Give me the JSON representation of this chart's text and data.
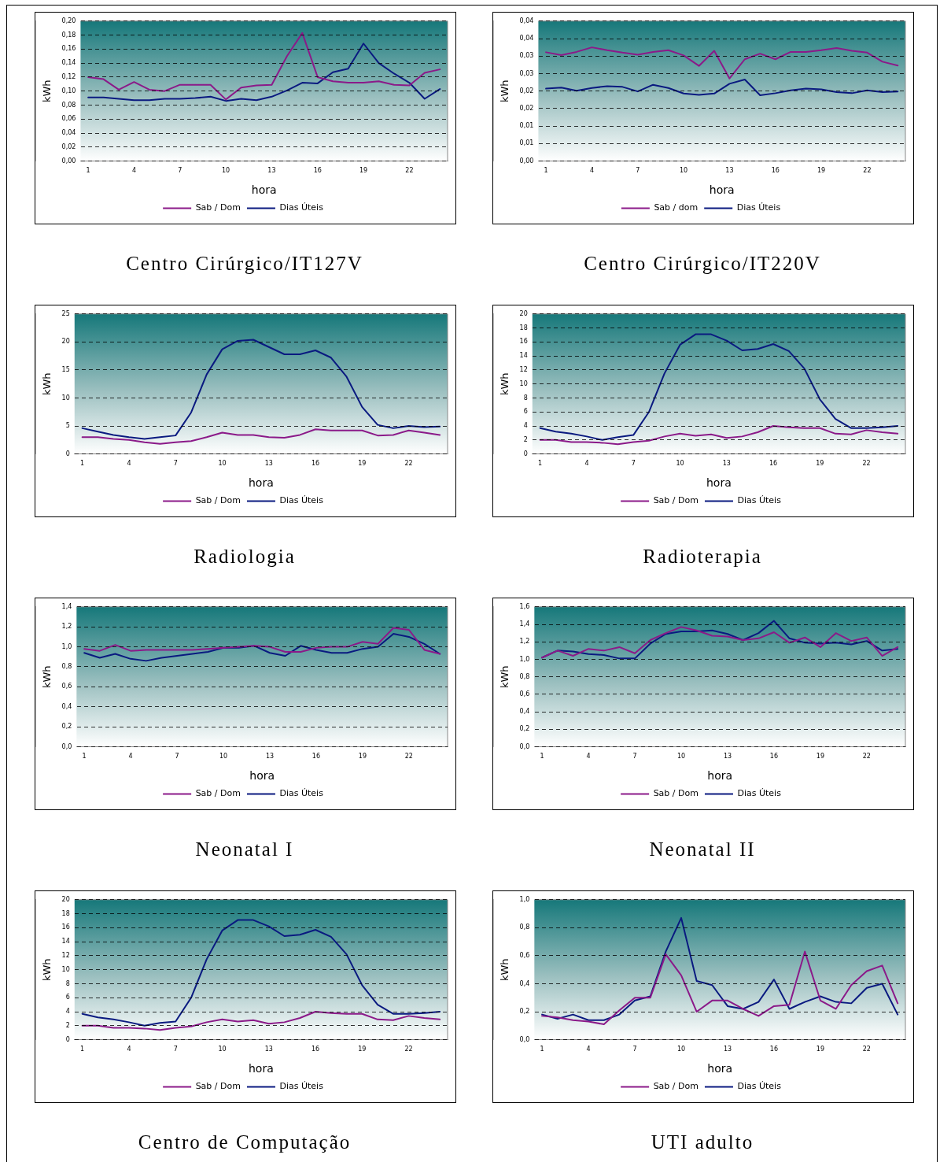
{
  "chart_data": [
    {
      "type": "line",
      "title": "Centro Cirúrgico/IT127V",
      "xlabel": "hora",
      "ylabel": "kWh",
      "categories": [
        "1",
        null,
        null,
        "4",
        null,
        null,
        "7",
        null,
        null,
        "10",
        null,
        null,
        "13",
        null,
        null,
        "16",
        null,
        null,
        "19",
        null,
        null,
        "22",
        null,
        null
      ],
      "ylim": [
        0,
        0.2
      ],
      "yticks": [
        {
          "value": 0,
          "label": "0,00"
        },
        {
          "value": 0.02,
          "label": "0,02"
        },
        {
          "value": 0.04,
          "label": "0,04"
        },
        {
          "value": 0.06,
          "label": "0,06"
        },
        {
          "value": 0.08,
          "label": "0,08"
        },
        {
          "value": 0.1,
          "label": "0,10"
        },
        {
          "value": 0.12,
          "label": "0,12"
        },
        {
          "value": 0.14,
          "label": "0,14"
        },
        {
          "value": 0.16,
          "label": "0,16"
        },
        {
          "value": 0.18,
          "label": "0,18"
        },
        {
          "value": 0.2,
          "label": "0,20"
        }
      ],
      "grid": "y",
      "legend": "bottom",
      "series": [
        {
          "name": "Sab / Dom",
          "color": "#8b1a89",
          "values": [
            0.12,
            0.117,
            0.102,
            0.113,
            0.102,
            0.1,
            0.109,
            0.109,
            0.109,
            0.088,
            0.105,
            0.108,
            0.109,
            0.15,
            0.183,
            0.12,
            0.114,
            0.112,
            0.112,
            0.114,
            0.109,
            0.108,
            0.126,
            0.131
          ]
        },
        {
          "name": "Dias Úteis",
          "color": "#0a1a80",
          "values": [
            0.091,
            0.091,
            0.089,
            0.087,
            0.087,
            0.089,
            0.089,
            0.09,
            0.092,
            0.086,
            0.089,
            0.087,
            0.092,
            0.101,
            0.112,
            0.111,
            0.127,
            0.132,
            0.168,
            0.14,
            0.125,
            0.112,
            0.089,
            0.103
          ]
        }
      ]
    },
    {
      "type": "line",
      "title": "Centro Cirúrgico/IT220V",
      "xlabel": "hora",
      "ylabel": "kWh",
      "categories": [
        "1",
        null,
        null,
        "4",
        null,
        null,
        "7",
        null,
        null,
        "10",
        null,
        null,
        "13",
        null,
        null,
        "16",
        null,
        null,
        "19",
        null,
        null,
        "22",
        null,
        null
      ],
      "ylim": [
        0,
        0.04
      ],
      "yticks": [
        {
          "value": 0,
          "label": "0,00"
        },
        {
          "value": 0.005,
          "label": "0,01"
        },
        {
          "value": 0.01,
          "label": "0,01"
        },
        {
          "value": 0.015,
          "label": "0,02"
        },
        {
          "value": 0.02,
          "label": "0,02"
        },
        {
          "value": 0.025,
          "label": "0,03"
        },
        {
          "value": 0.03,
          "label": "0,03"
        },
        {
          "value": 0.035,
          "label": "0,04"
        },
        {
          "value": 0.04,
          "label": "0,04"
        }
      ],
      "grid": "y",
      "legend": "bottom",
      "series": [
        {
          "name": "Sab / dom",
          "color": "#8b1a89",
          "values": [
            0.0311,
            0.0303,
            0.0312,
            0.0325,
            0.0317,
            0.031,
            0.0304,
            0.0312,
            0.0317,
            0.0302,
            0.0272,
            0.0315,
            0.0236,
            0.0291,
            0.0307,
            0.0291,
            0.0312,
            0.0312,
            0.0317,
            0.0323,
            0.0315,
            0.031,
            0.0284,
            0.0273
          ]
        },
        {
          "name": "Dias Úteis",
          "color": "#0a1a80",
          "values": [
            0.0207,
            0.021,
            0.0201,
            0.0209,
            0.0214,
            0.0212,
            0.0199,
            0.0218,
            0.0209,
            0.0193,
            0.0189,
            0.0193,
            0.0221,
            0.0233,
            0.0188,
            0.0194,
            0.0202,
            0.0207,
            0.0205,
            0.0197,
            0.0194,
            0.0202,
            0.0197,
            0.0199
          ]
        }
      ]
    },
    {
      "type": "line",
      "title": "Radiologia",
      "xlabel": "hora",
      "ylabel": "kWh",
      "categories": [
        "1",
        null,
        null,
        "4",
        null,
        null,
        "7",
        null,
        null,
        "10",
        null,
        null,
        "13",
        null,
        null,
        "16",
        null,
        null,
        "19",
        null,
        null,
        "22",
        null,
        null
      ],
      "ylim": [
        0,
        25
      ],
      "yticks": [
        0,
        5,
        10,
        15,
        20,
        25
      ],
      "grid": "y",
      "legend": "bottom",
      "series": [
        {
          "name": "Sab / Dom",
          "color": "#8b1a89",
          "values": [
            3.0,
            3.0,
            2.7,
            2.5,
            2.1,
            1.8,
            2.1,
            2.3,
            3.0,
            3.8,
            3.4,
            3.4,
            3.0,
            2.9,
            3.4,
            4.4,
            4.2,
            4.2,
            4.2,
            3.3,
            3.4,
            4.2,
            3.8,
            3.4
          ]
        },
        {
          "name": "Dias Úteis",
          "color": "#0a1a80",
          "values": [
            4.6,
            4.0,
            3.4,
            3.0,
            2.7,
            3.0,
            3.3,
            7.4,
            14.2,
            18.7,
            20.2,
            20.4,
            19.1,
            17.8,
            17.8,
            18.5,
            17.2,
            13.8,
            8.4,
            5.2,
            4.6,
            5.0,
            4.8,
            4.9
          ]
        }
      ]
    },
    {
      "type": "line",
      "title": "Radioterapia",
      "xlabel": "hora",
      "ylabel": "kWh",
      "categories": [
        "1",
        null,
        null,
        "4",
        null,
        null,
        "7",
        null,
        null,
        "10",
        null,
        null,
        "13",
        null,
        null,
        "16",
        null,
        null,
        "19",
        null,
        null,
        "22",
        null,
        null
      ],
      "ylim": [
        0,
        20
      ],
      "yticks": [
        0,
        2,
        4,
        6,
        8,
        10,
        12,
        14,
        16,
        18,
        20
      ],
      "grid": "y",
      "legend": "bottom",
      "series": [
        {
          "name": "Sab / Dom",
          "color": "#8b1a89",
          "values": [
            2.0,
            2.0,
            1.7,
            1.7,
            1.6,
            1.4,
            1.7,
            1.9,
            2.5,
            2.9,
            2.6,
            2.8,
            2.3,
            2.5,
            3.1,
            4.0,
            3.8,
            3.7,
            3.7,
            2.9,
            2.8,
            3.4,
            3.1,
            2.9
          ]
        },
        {
          "name": "Dias Úteis",
          "color": "#0a1a80",
          "values": [
            3.7,
            3.2,
            2.9,
            2.5,
            2.0,
            2.4,
            2.7,
            6.0,
            11.5,
            15.6,
            17.1,
            17.1,
            16.2,
            14.8,
            15.0,
            15.7,
            14.7,
            12.2,
            7.8,
            5.0,
            3.7,
            3.7,
            3.8,
            4.0
          ]
        }
      ]
    },
    {
      "type": "line",
      "title": "Neonatal I",
      "xlabel": "hora",
      "ylabel": "kWh",
      "categories": [
        "1",
        null,
        null,
        "4",
        null,
        null,
        "7",
        null,
        null,
        "10",
        null,
        null,
        "13",
        null,
        null,
        "16",
        null,
        null,
        "19",
        null,
        null,
        "22",
        null,
        null
      ],
      "ylim": [
        0,
        1.4
      ],
      "yticks": [
        {
          "value": 0,
          "label": "0,0"
        },
        {
          "value": 0.2,
          "label": "0,2"
        },
        {
          "value": 0.4,
          "label": "0,4"
        },
        {
          "value": 0.6,
          "label": "0,6"
        },
        {
          "value": 0.8,
          "label": "0,8"
        },
        {
          "value": 1.0,
          "label": "1,0"
        },
        {
          "value": 1.2,
          "label": "1,2"
        },
        {
          "value": 1.4,
          "label": "1,4"
        }
      ],
      "grid": "y",
      "legend": "bottom",
      "series": [
        {
          "name": "Sab / Dom",
          "color": "#8b1a89",
          "values": [
            0.98,
            0.96,
            1.02,
            0.96,
            0.97,
            0.97,
            0.97,
            0.97,
            0.98,
            0.99,
            1.0,
            1.01,
            1.0,
            0.95,
            0.95,
            0.99,
            1.0,
            1.0,
            1.05,
            1.03,
            1.19,
            1.17,
            0.97,
            0.93
          ]
        },
        {
          "name": "Dias Úteis",
          "color": "#0a1a80",
          "values": [
            0.94,
            0.89,
            0.93,
            0.88,
            0.86,
            0.89,
            0.91,
            0.93,
            0.95,
            0.99,
            0.99,
            1.01,
            0.94,
            0.91,
            1.01,
            0.97,
            0.94,
            0.94,
            0.98,
            1.0,
            1.13,
            1.1,
            1.03,
            0.93
          ]
        }
      ]
    },
    {
      "type": "line",
      "title": "Neonatal II",
      "xlabel": "hora",
      "ylabel": "kWh",
      "categories": [
        "1",
        null,
        null,
        "4",
        null,
        null,
        "7",
        null,
        null,
        "10",
        null,
        null,
        "13",
        null,
        null,
        "16",
        null,
        null,
        "19",
        null,
        null,
        "22",
        null,
        null
      ],
      "ylim": [
        0,
        1.6
      ],
      "yticks": [
        {
          "value": 0,
          "label": "0,0"
        },
        {
          "value": 0.2,
          "label": "0,2"
        },
        {
          "value": 0.4,
          "label": "0,4"
        },
        {
          "value": 0.6,
          "label": "0,6"
        },
        {
          "value": 0.8,
          "label": "0,8"
        },
        {
          "value": 1.0,
          "label": "1,0"
        },
        {
          "value": 1.2,
          "label": "1,2"
        },
        {
          "value": 1.4,
          "label": "1,4"
        },
        {
          "value": 1.6,
          "label": "1,6"
        }
      ],
      "grid": "y",
      "legend": "bottom",
      "series": [
        {
          "name": "Sab / Dom",
          "color": "#8b1a89",
          "values": [
            1.02,
            1.1,
            1.04,
            1.12,
            1.1,
            1.14,
            1.07,
            1.22,
            1.3,
            1.37,
            1.33,
            1.27,
            1.26,
            1.22,
            1.24,
            1.31,
            1.19,
            1.25,
            1.14,
            1.3,
            1.21,
            1.25,
            1.04,
            1.14
          ]
        },
        {
          "name": "Dias Úteis",
          "color": "#0a1a80",
          "values": [
            1.02,
            1.1,
            1.09,
            1.06,
            1.05,
            1.01,
            1.01,
            1.18,
            1.29,
            1.32,
            1.32,
            1.33,
            1.29,
            1.22,
            1.3,
            1.44,
            1.24,
            1.19,
            1.18,
            1.19,
            1.17,
            1.21,
            1.1,
            1.12
          ]
        }
      ]
    },
    {
      "type": "line",
      "title": "Centro de Computação",
      "xlabel": "hora",
      "ylabel": "kWh",
      "categories": [
        "1",
        null,
        null,
        "4",
        null,
        null,
        "7",
        null,
        null,
        "10",
        null,
        null,
        "13",
        null,
        null,
        "16",
        null,
        null,
        "19",
        null,
        null,
        "22",
        null,
        null
      ],
      "ylim": [
        0,
        20
      ],
      "yticks": [
        0,
        2,
        4,
        6,
        8,
        10,
        12,
        14,
        16,
        18,
        20
      ],
      "grid": "y",
      "legend": "bottom",
      "series": [
        {
          "name": "Sab / Dom",
          "color": "#8b1a89",
          "values": [
            2.0,
            2.0,
            1.7,
            1.7,
            1.6,
            1.4,
            1.7,
            1.9,
            2.5,
            2.9,
            2.6,
            2.8,
            2.3,
            2.5,
            3.1,
            4.0,
            3.8,
            3.7,
            3.7,
            2.9,
            2.8,
            3.4,
            3.1,
            2.9
          ]
        },
        {
          "name": "Dias Úteis",
          "color": "#0a1a80",
          "values": [
            3.7,
            3.2,
            2.9,
            2.5,
            2.0,
            2.4,
            2.6,
            6.0,
            11.5,
            15.6,
            17.1,
            17.1,
            16.2,
            14.8,
            15.0,
            15.7,
            14.7,
            12.2,
            7.8,
            5.0,
            3.7,
            3.7,
            3.8,
            4.0
          ]
        }
      ]
    },
    {
      "type": "line",
      "title": "UTI adulto",
      "xlabel": "hora",
      "ylabel": "kWh",
      "categories": [
        "1",
        null,
        null,
        "4",
        null,
        null,
        "7",
        null,
        null,
        "10",
        null,
        null,
        "13",
        null,
        null,
        "16",
        null,
        null,
        "19",
        null,
        null,
        "22",
        null,
        null
      ],
      "ylim": [
        0,
        1.0
      ],
      "yticks": [
        {
          "value": 0,
          "label": "0,0"
        },
        {
          "value": 0.2,
          "label": "0,2"
        },
        {
          "value": 0.4,
          "label": "0,4"
        },
        {
          "value": 0.6,
          "label": "0,6"
        },
        {
          "value": 0.8,
          "label": "0,8"
        },
        {
          "value": 1.0,
          "label": "1,0"
        }
      ],
      "grid": "y",
      "legend": "bottom",
      "series": [
        {
          "name": "Sab / Dom",
          "color": "#8b1a89",
          "values": [
            0.17,
            0.16,
            0.14,
            0.13,
            0.11,
            0.21,
            0.3,
            0.3,
            0.61,
            0.46,
            0.2,
            0.28,
            0.28,
            0.22,
            0.17,
            0.24,
            0.25,
            0.63,
            0.28,
            0.22,
            0.39,
            0.49,
            0.53,
            0.26
          ]
        },
        {
          "name": "Dias Úteis",
          "color": "#0a1a80",
          "values": [
            0.18,
            0.15,
            0.18,
            0.14,
            0.14,
            0.18,
            0.28,
            0.31,
            0.63,
            0.87,
            0.42,
            0.39,
            0.24,
            0.22,
            0.27,
            0.43,
            0.22,
            0.27,
            0.31,
            0.27,
            0.26,
            0.37,
            0.4,
            0.18
          ]
        }
      ]
    }
  ]
}
